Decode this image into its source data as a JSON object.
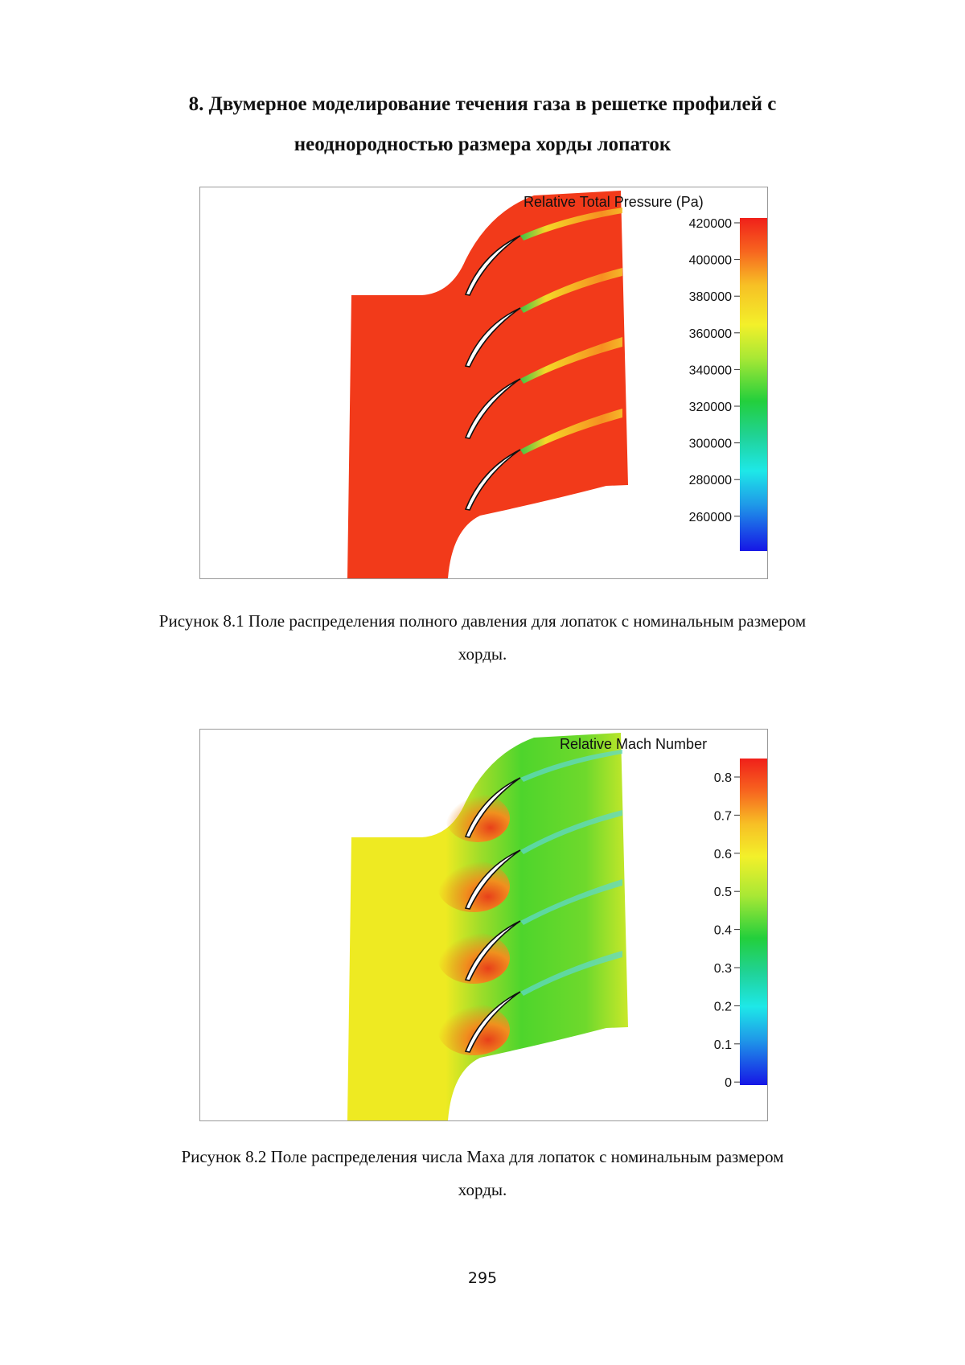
{
  "section": {
    "title_line1": "8. Двумерное моделирование течения газа в решетке профилей с",
    "title_line2": "неоднородностью размера хорды лопаток"
  },
  "figures": [
    {
      "colorbar_title": "Relative Total Pressure (Pa)",
      "ticks": [
        "420000",
        "400000",
        "380000",
        "360000",
        "340000",
        "320000",
        "300000",
        "280000",
        "260000"
      ],
      "field_color": "#f23a1a",
      "caption_line1": "Рисунок 8.1 Поле распределения полного давления для лопаток с номинальным размером",
      "caption_line2": "хорды."
    },
    {
      "colorbar_title": "Relative Mach Number",
      "ticks": [
        "0.8",
        "0.7",
        "0.6",
        "0.5",
        "0.4",
        "0.3",
        "0.2",
        "0.1",
        "0"
      ],
      "field_color": "#e8e81e",
      "caption_line1": "Рисунок 8.2 Поле распределения числа Маха для лопаток с номинальным размером",
      "caption_line2": "хорды."
    }
  ],
  "page_number": "295"
}
